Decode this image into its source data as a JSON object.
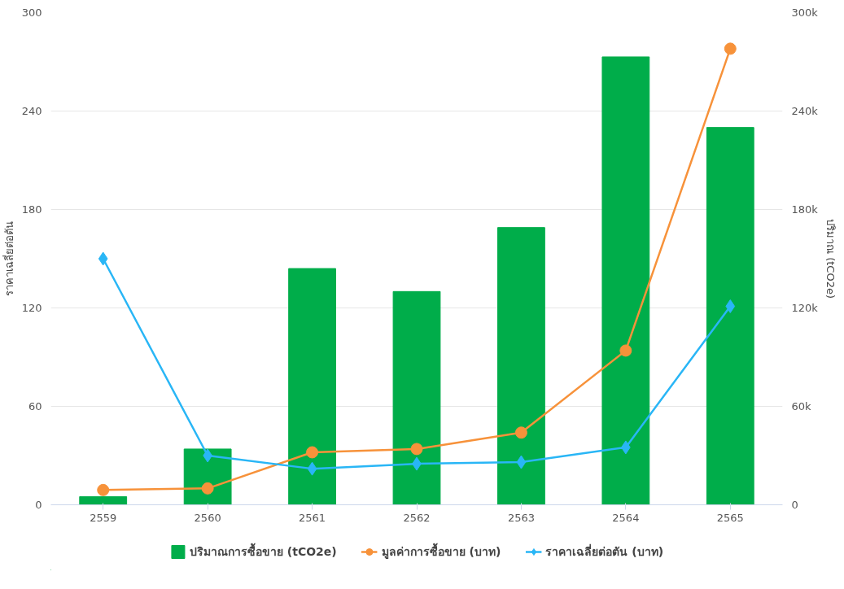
{
  "chart_data": {
    "type": "bar",
    "categories": [
      "2559",
      "2560",
      "2561",
      "2562",
      "2563",
      "2564",
      "2565"
    ],
    "ylabel": "ราคาเฉลี่ยต่อตัน",
    "y2label": "ปริมาณ (tCO2e)",
    "ylim": [
      0,
      300
    ],
    "yticks": [
      0,
      60,
      120,
      180,
      240,
      300
    ],
    "y2lim": [
      0,
      300000
    ],
    "y2ticks": [
      {
        "value": 0,
        "label": "0"
      },
      {
        "value": 60000,
        "label": "60k"
      },
      {
        "value": 120000,
        "label": "120k"
      },
      {
        "value": 180000,
        "label": "180k"
      },
      {
        "value": 240000,
        "label": "240k"
      },
      {
        "value": 300000,
        "label": "300k"
      }
    ],
    "grid": "y",
    "legend": "bottom",
    "series": [
      {
        "name": "ปริมาณการซื้อขาย (tCO2e)",
        "axis": "y2",
        "color": "#00ad4a",
        "values": [
          5000,
          34000,
          144000,
          130000,
          169000,
          273000,
          230000
        ]
      },
      {
        "name": "มูลค่าการซื้อขาย (บาท)",
        "type": "line",
        "axis": "y",
        "color": "#f7923a",
        "marker": "circle",
        "values": [
          9,
          10,
          32,
          34,
          44,
          94,
          278
        ]
      },
      {
        "name": "ราคาเฉลี่ยต่อตัน (บาท)",
        "type": "line",
        "axis": "y",
        "color": "#29b6f6",
        "marker": "diamond",
        "values": [
          150,
          30,
          22,
          25,
          26,
          35,
          121
        ]
      }
    ]
  }
}
